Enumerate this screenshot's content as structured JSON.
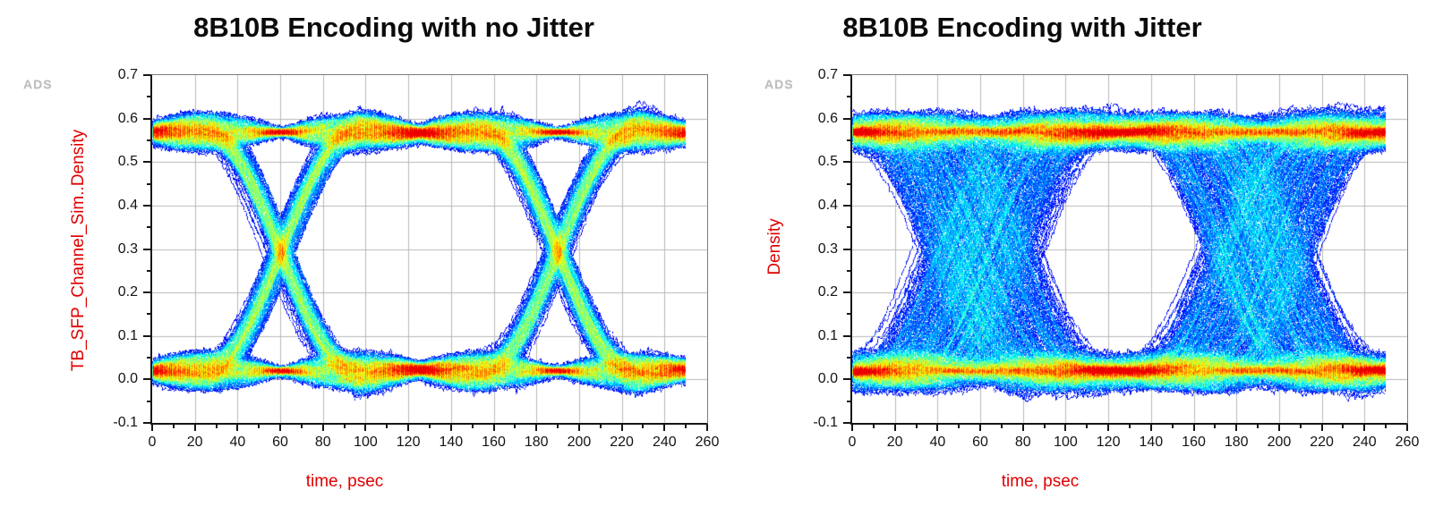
{
  "page": {
    "background": "#ffffff",
    "grid_color": "#b9b9b9",
    "frame_color": "#7c7c7c",
    "axis_color": "#161616",
    "tick_label_color": "#141414",
    "axis_label_color": "#e00000",
    "watermark_color": "#bdbdbd"
  },
  "chart_data": [
    {
      "type": "heatmap",
      "subtype": "eye-diagram-density",
      "title": "8B10B Encoding with no Jitter",
      "watermark": "ADS",
      "xlabel": "time, psec",
      "ylabel": "TB_SFP_Channel_Sim..Density",
      "xlim": [
        0,
        260
      ],
      "ylim": [
        -0.1,
        0.7
      ],
      "x_ticks": [
        0,
        20,
        40,
        60,
        80,
        100,
        120,
        140,
        160,
        180,
        200,
        220,
        240,
        260
      ],
      "x_minor_step": 10,
      "y_ticks": [
        0.7,
        0.6,
        0.5,
        0.4,
        0.3,
        0.2,
        0.1,
        0.0,
        -0.1
      ],
      "y_minor_step": 0.05,
      "grid": true,
      "legend_position": "none",
      "colormap": "jet",
      "density_scale": "dark blue = low trace density, red = high trace density",
      "signal": {
        "data_span_psec": [
          0,
          250
        ],
        "unit_interval_psec": 130,
        "crossing_times_psec": [
          60,
          190
        ],
        "crossing_level": 0.3,
        "low_level": 0.02,
        "high_level": 0.57,
        "transition_time_psec": 70,
        "rail_spread": 0.03,
        "timing_jitter_uniform_psec": 0,
        "timing_jitter_sigma_psec": 2.5,
        "noise_sigma": 0.0035,
        "overshoot": 0.022,
        "traces": 1250,
        "seed": 7
      }
    },
    {
      "type": "heatmap",
      "subtype": "eye-diagram-density",
      "title": "8B10B Encoding with Jitter",
      "watermark": "ADS",
      "xlabel": "time, psec",
      "ylabel": "Density",
      "xlim": [
        0,
        260
      ],
      "ylim": [
        -0.1,
        0.7
      ],
      "x_ticks": [
        0,
        20,
        40,
        60,
        80,
        100,
        120,
        140,
        160,
        180,
        200,
        220,
        240,
        260
      ],
      "x_minor_step": 10,
      "y_ticks": [
        0.7,
        0.6,
        0.5,
        0.4,
        0.3,
        0.2,
        0.1,
        0.0,
        -0.1
      ],
      "y_minor_step": 0.05,
      "grid": true,
      "legend_position": "none",
      "colormap": "jet",
      "density_scale": "dark blue = low trace density, red = high trace density",
      "signal": {
        "data_span_psec": [
          0,
          250
        ],
        "unit_interval_psec": 130,
        "crossing_times_psec": [
          60,
          190
        ],
        "crossing_level": 0.3,
        "low_level": 0.02,
        "high_level": 0.57,
        "transition_time_psec": 70,
        "rail_spread": 0.034,
        "timing_jitter_uniform_psec": 23,
        "timing_jitter_sigma_psec": 4,
        "noise_sigma": 0.004,
        "overshoot": 0.02,
        "traces": 1250,
        "seed": 13
      }
    }
  ]
}
